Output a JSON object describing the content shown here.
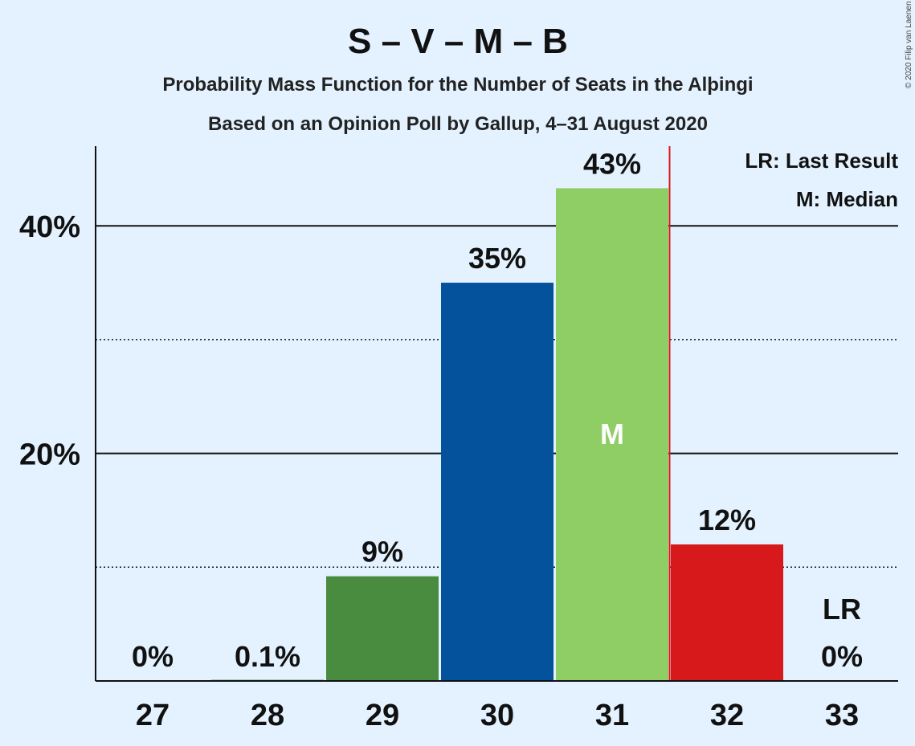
{
  "copyright": "© 2020 Filip van Laenen",
  "chart_data": {
    "type": "bar",
    "title": "S – V – M – B",
    "subtitle": "Probability Mass Function for the Number of Seats in the Alþingi",
    "subtitle2": "Based on an Opinion Poll by Gallup, 4–31 August 2020",
    "xlabel": "",
    "ylabel": "",
    "categories": [
      "27",
      "28",
      "29",
      "30",
      "31",
      "32",
      "33"
    ],
    "values": [
      0,
      0.1,
      9.2,
      35,
      43.3,
      12,
      0
    ],
    "data_labels": [
      "0%",
      "0.1%",
      "9%",
      "35%",
      "43%",
      "12%",
      "0%"
    ],
    "bar_colors": [
      "#4a8c3f",
      "#4a8c3f",
      "#4a8c3f",
      "#03529b",
      "#8fce64",
      "#d7191c",
      "#d7191c"
    ],
    "ylim": [
      0,
      47
    ],
    "y_ticks": [
      {
        "value": 20,
        "label": "20%"
      },
      {
        "value": 40,
        "label": "40%"
      }
    ],
    "minor_gridlines": [
      10,
      30
    ],
    "median_category": "31",
    "median_marker": "M",
    "last_result_category": "33",
    "last_result_marker": "LR",
    "last_result_line_color": "#d7191c",
    "legend": {
      "placement": "top-right",
      "entries": [
        "LR: Last Result",
        "M: Median"
      ]
    }
  }
}
